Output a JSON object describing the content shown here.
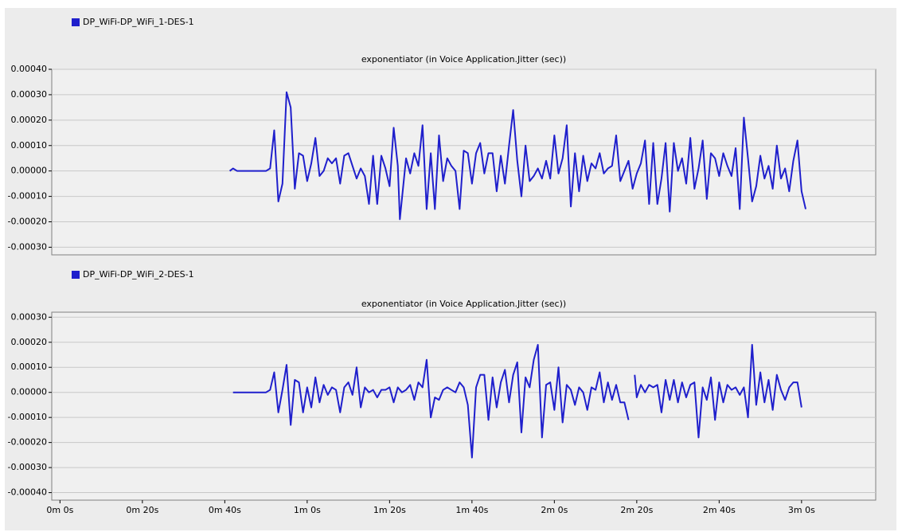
{
  "chart_data": [
    {
      "type": "line",
      "title": "exponentiator (in Voice Application.Jitter (sec))",
      "series": [
        {
          "name": "DP_WiFi-DP_WiFi_1-DES-1",
          "color": "#1f1fcc",
          "x": [
            41.2,
            42,
            43,
            44,
            46,
            48,
            50,
            51,
            52,
            53,
            54,
            55,
            56,
            57,
            58,
            59,
            60,
            61,
            62,
            63,
            64,
            65,
            66,
            67,
            68,
            69,
            70,
            71,
            72,
            73,
            74,
            75,
            76,
            77,
            78,
            79,
            80,
            81,
            82,
            82.5,
            84,
            85,
            86,
            87,
            88,
            89,
            90,
            91,
            92,
            93,
            94,
            95,
            96,
            97,
            98,
            99,
            100,
            101,
            102,
            103,
            104,
            105,
            106,
            107,
            108,
            109,
            110,
            111,
            112,
            113,
            114,
            115,
            116,
            117,
            118,
            119,
            120,
            121,
            122,
            123,
            124,
            125,
            126,
            127,
            128,
            129,
            130,
            131,
            132,
            133,
            134,
            135,
            136,
            137,
            138,
            139,
            140,
            141,
            142,
            143,
            144,
            145,
            146,
            147,
            148,
            149,
            150,
            151,
            152,
            153,
            154,
            155,
            156,
            157,
            158,
            159,
            160,
            161,
            162,
            163,
            164,
            165,
            166,
            167,
            168,
            169,
            170,
            171,
            172,
            173,
            174,
            175,
            176,
            177,
            178,
            179,
            180,
            181
          ],
          "values": [
            0,
            1e-05,
            0,
            0,
            0,
            0,
            0,
            1e-05,
            0.00016,
            -0.00012,
            -5e-05,
            0.00031,
            0.00025,
            -7e-05,
            7e-05,
            6e-05,
            -4e-05,
            3e-05,
            0.00013,
            -2e-05,
            0,
            5e-05,
            3e-05,
            5e-05,
            -5e-05,
            6e-05,
            7e-05,
            2e-05,
            -3e-05,
            1e-05,
            -2e-05,
            -0.00013,
            6e-05,
            -0.00013,
            6e-05,
            1e-05,
            -6e-05,
            0.00017,
            2e-05,
            -0.00019,
            5e-05,
            -1e-05,
            7e-05,
            2e-05,
            0.00018,
            -0.00015,
            7e-05,
            -0.00015,
            0.00014,
            -4e-05,
            5e-05,
            2e-05,
            0,
            -0.00015,
            8e-05,
            7e-05,
            -5e-05,
            7e-05,
            0.00011,
            -1e-05,
            7e-05,
            7e-05,
            -8e-05,
            6e-05,
            -5e-05,
            0.0001,
            0.00024,
            4e-05,
            -0.0001,
            0.0001,
            -4e-05,
            -2e-05,
            1e-05,
            -3e-05,
            4e-05,
            -3e-05,
            0.00014,
            -1e-05,
            5e-05,
            0.00018,
            -0.00014,
            7e-05,
            -8e-05,
            6e-05,
            -4e-05,
            3e-05,
            1e-05,
            7e-05,
            -1e-05,
            1e-05,
            2e-05,
            0.00014,
            -4e-05,
            0,
            4e-05,
            -7e-05,
            -1e-05,
            3e-05,
            0.00012,
            -0.00013,
            0.00011,
            -0.00013,
            -3e-05,
            0.00011,
            -0.00016,
            0.00011,
            0,
            5e-05,
            -5e-05,
            0.00013,
            -7e-05,
            1e-05,
            0.00012,
            -0.00011,
            7e-05,
            5e-05,
            -2e-05,
            7e-05,
            2e-05,
            -2e-05,
            9e-05,
            -0.00015,
            0.00021,
            5e-05,
            -0.00012,
            -6e-05,
            6e-05,
            -3e-05,
            2e-05,
            -7e-05,
            0.0001,
            -3e-05,
            1e-05,
            -8e-05,
            4e-05,
            0.00012,
            -8e-05,
            -0.00015
          ]
        }
      ],
      "xlim": [
        -2,
        198
      ],
      "ylim": [
        -0.00033,
        0.0004
      ],
      "yticks": [
        {
          "value": 0.0004,
          "label": "0.00040"
        },
        {
          "value": 0.0003,
          "label": "0.00030"
        },
        {
          "value": 0.0002,
          "label": "0.00020"
        },
        {
          "value": 0.0001,
          "label": "0.00010"
        },
        {
          "value": 0,
          "label": "0.00000"
        },
        {
          "value": -0.0001,
          "label": "-0.00010"
        },
        {
          "value": -0.0002,
          "label": "-0.00020"
        },
        {
          "value": -0.0003,
          "label": "-0.00030"
        }
      ],
      "grid": true
    },
    {
      "type": "line",
      "title": "exponentiator (in Voice Application.Jitter (sec))",
      "series": [
        {
          "name": "DP_WiFi-DP_WiFi_2-DES-1",
          "color": "#1f1fcc",
          "x": [
            42,
            44,
            46,
            48,
            50,
            51,
            52,
            53,
            54,
            55,
            56,
            57,
            58,
            59,
            60,
            61,
            62,
            63,
            64,
            65,
            66,
            67,
            68,
            69,
            70,
            71,
            72,
            73,
            74,
            75,
            76,
            77,
            78,
            79,
            80,
            81,
            82,
            83,
            84,
            85,
            86,
            87,
            88,
            89,
            90,
            91,
            92,
            93,
            94,
            95,
            96,
            97,
            98,
            99,
            100,
            101,
            102,
            103,
            104,
            105,
            106,
            107,
            108,
            109,
            110,
            111,
            112,
            113,
            114,
            115,
            116,
            117,
            118,
            119,
            120,
            121,
            122,
            123,
            124,
            125,
            126,
            127,
            128,
            129,
            130,
            131,
            132,
            133,
            134,
            135,
            136,
            137,
            138,
            139,
            139.5,
            140,
            141,
            142,
            143,
            144,
            145,
            146,
            147,
            148,
            149,
            150,
            151,
            152,
            153,
            154,
            155,
            156,
            157,
            158,
            159,
            160,
            161,
            162,
            163,
            164,
            165,
            166,
            167,
            168,
            169,
            170,
            171,
            172,
            173,
            174,
            175,
            176,
            177,
            178,
            179,
            180
          ],
          "values": [
            0,
            0,
            0,
            0,
            0,
            1e-05,
            8e-05,
            -8e-05,
            1e-05,
            0.00011,
            -0.00013,
            5e-05,
            4e-05,
            -8e-05,
            2e-05,
            -6e-05,
            6e-05,
            -4e-05,
            3e-05,
            -1e-05,
            2e-05,
            1e-05,
            -8e-05,
            2e-05,
            4e-05,
            -1e-05,
            0.0001,
            -6e-05,
            2e-05,
            0,
            1e-05,
            -2e-05,
            1e-05,
            1e-05,
            2e-05,
            -4e-05,
            2e-05,
            0,
            1e-05,
            3e-05,
            -3e-05,
            4e-05,
            2e-05,
            0.00013,
            -0.0001,
            -2e-05,
            -3e-05,
            1e-05,
            2e-05,
            1e-05,
            0,
            4e-05,
            2e-05,
            -5e-05,
            -0.00026,
            2e-05,
            7e-05,
            7e-05,
            -0.00011,
            6e-05,
            -6e-05,
            4e-05,
            9e-05,
            -4e-05,
            7e-05,
            0.00012,
            -0.00016,
            6e-05,
            2e-05,
            0.00013,
            0.00019,
            -0.00018,
            3e-05,
            4e-05,
            -7e-05,
            0.0001,
            -0.00012,
            3e-05,
            1e-05,
            -5e-05,
            2e-05,
            0,
            -7e-05,
            2e-05,
            1e-05,
            8e-05,
            -4e-05,
            4e-05,
            -3e-05,
            3e-05,
            -4e-05,
            -4e-05,
            -0.00011,
            null,
            7e-05,
            -2e-05,
            3e-05,
            0,
            3e-05,
            2e-05,
            3e-05,
            -8e-05,
            5e-05,
            -3e-05,
            5e-05,
            -4e-05,
            4e-05,
            -2e-05,
            3e-05,
            4e-05,
            -0.00018,
            2e-05,
            -3e-05,
            6e-05,
            -0.00011,
            4e-05,
            -4e-05,
            3e-05,
            1e-05,
            2e-05,
            -1e-05,
            2e-05,
            -0.0001,
            0.00019,
            -5e-05,
            8e-05,
            -4e-05,
            5e-05,
            -7e-05,
            7e-05,
            1e-05,
            -3e-05,
            2e-05,
            4e-05,
            4e-05,
            -6e-05
          ]
        }
      ],
      "xlim": [
        -2,
        198
      ],
      "xticks": [
        {
          "value": 0,
          "label": "0m 0s"
        },
        {
          "value": 20,
          "label": "0m 20s"
        },
        {
          "value": 40,
          "label": "0m 40s"
        },
        {
          "value": 60,
          "label": "1m 0s"
        },
        {
          "value": 80,
          "label": "1m 20s"
        },
        {
          "value": 100,
          "label": "1m 40s"
        },
        {
          "value": 120,
          "label": "2m 0s"
        },
        {
          "value": 140,
          "label": "2m 20s"
        },
        {
          "value": 160,
          "label": "2m 40s"
        },
        {
          "value": 180,
          "label": "3m 0s"
        }
      ],
      "ylim": [
        -0.00043,
        0.00032
      ],
      "yticks": [
        {
          "value": 0.0003,
          "label": "0.00030"
        },
        {
          "value": 0.0002,
          "label": "0.00020"
        },
        {
          "value": 0.0001,
          "label": "0.00010"
        },
        {
          "value": 0,
          "label": "0.00000"
        },
        {
          "value": -0.0001,
          "label": "-0.00010"
        },
        {
          "value": -0.0002,
          "label": "-0.00020"
        },
        {
          "value": -0.0003,
          "label": "-0.00030"
        },
        {
          "value": -0.0004,
          "label": "-0.00040"
        }
      ],
      "grid": true
    }
  ]
}
